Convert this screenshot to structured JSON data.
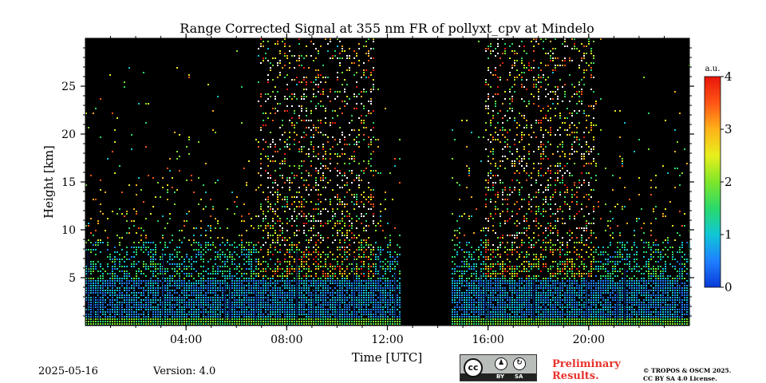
{
  "chart_data": {
    "type": "heatmap",
    "title": "Range Corrected Signal at 355 nm FR of pollyxt_cpv at Mindelo",
    "xlabel": "Time [UTC]",
    "ylabel": "Height [km]",
    "x_range_hours": [
      0,
      24
    ],
    "y_range_km": [
      0,
      30
    ],
    "x_tick_values": [
      4,
      8,
      12,
      16,
      20
    ],
    "x_tick_labels": [
      "04:00",
      "08:00",
      "12:00",
      "16:00",
      "20:00"
    ],
    "y_tick_values": [
      5,
      10,
      15,
      20,
      25
    ],
    "y_tick_labels": [
      "5",
      "10",
      "15",
      "20",
      "25"
    ],
    "colorbar": {
      "label": "a.u.",
      "range": [
        0,
        4
      ],
      "tick_values": [
        0,
        1,
        2,
        3,
        4
      ],
      "tick_labels": [
        "0",
        "1",
        "2",
        "3",
        "4"
      ],
      "colormap": [
        "#0a3bd8",
        "#1f7fff",
        "#10c6d6",
        "#2bd96a",
        "#7ee62a",
        "#e8ef1c",
        "#ffb21a",
        "#ff5515",
        "#e8160c"
      ]
    },
    "no_data_gap_hours": [
      12.55,
      14.55
    ],
    "colormap_note": "sparse noisy signal; dense returns below ~5 km; convective noise band around 07:00–11:30 and 16:00–20:00"
  },
  "footer": {
    "date": "2025-05-16",
    "version": "Version: 4.0",
    "license_badge": {
      "cc": "cc",
      "by": "BY",
      "sa": "SA"
    },
    "preliminary_line1": "Preliminary",
    "preliminary_line2": "Results.",
    "copyright_line1": "© TROPOS & OSCM 2025.",
    "copyright_line2": "CC BY SA 4.0 License."
  }
}
